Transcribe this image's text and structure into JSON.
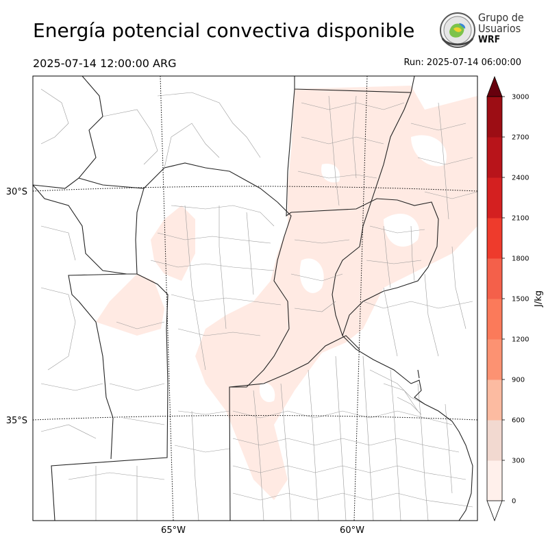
{
  "header": {
    "title": "Energía potencial convectiva disponible",
    "valid_time": "2025-07-14 12:00:00 ARG",
    "run_time": "Run: 2025-07-14 06:00:00"
  },
  "logo": {
    "line1": "Grupo de",
    "line2": "Usuarios",
    "line3": "WRF"
  },
  "map": {
    "lat_labels": [
      "30°S",
      "35°S"
    ],
    "lon_labels": [
      "65°W",
      "60°W"
    ]
  },
  "colorbar": {
    "unit_label": "J/kg",
    "levels": [
      0,
      300,
      600,
      900,
      1200,
      1500,
      1800,
      2100,
      2400,
      2700,
      3000
    ],
    "level_labels": [
      "0",
      "300",
      "600",
      "900",
      "1200",
      "1500",
      "1800",
      "2100",
      "2400",
      "2700",
      "3000"
    ],
    "colors": [
      "#fff0eb",
      "#f2d9d0",
      "#fcbba1",
      "#fc9272",
      "#fb7a5a",
      "#f4604a",
      "#ee3b2c",
      "#d42020",
      "#b8141a",
      "#9c0d14"
    ],
    "under_color": "#ffffff",
    "over_color": "#67000d"
  },
  "colors": {
    "cape_shade": "#ffeae3"
  }
}
